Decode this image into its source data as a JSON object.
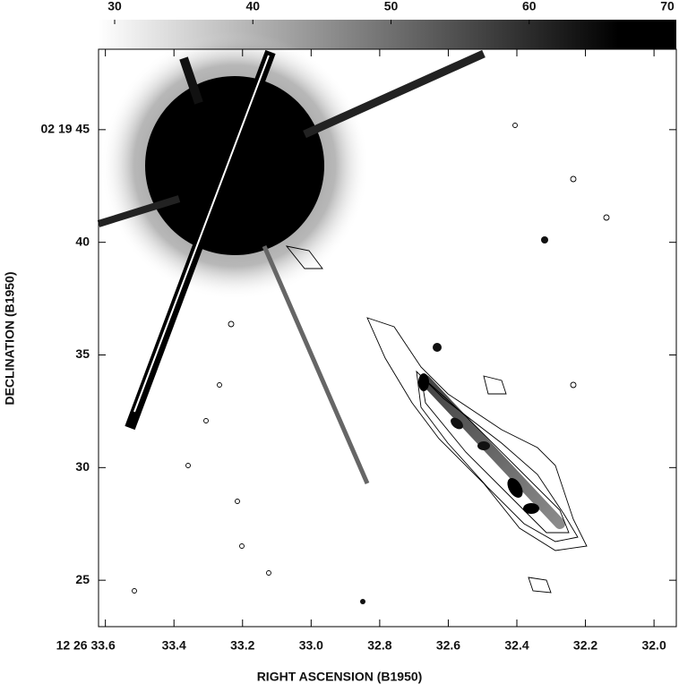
{
  "chart_data": {
    "type": "image",
    "x_label": "RIGHT ASCENSION (B1950)",
    "y_label": "DECLINATION (B1950)",
    "xlim": [
      33.62,
      31.935
    ],
    "xticks": [
      {
        "value": 33.6,
        "label": "12 26 33.6"
      },
      33.4,
      33.2,
      {
        "value": 33.0,
        "label": "33.0"
      },
      32.8,
      32.6,
      32.4,
      32.2,
      {
        "value": 32.0,
        "label": "32.0"
      }
    ],
    "ylim": [
      22.94,
      48.57
    ],
    "yticks": [
      {
        "value": 45,
        "label": "02 19 45"
      },
      40,
      35,
      30,
      25
    ],
    "colorbar": {
      "clim": [
        30,
        70
      ],
      "ticks": [
        30,
        40,
        50,
        60,
        70
      ]
    }
  }
}
